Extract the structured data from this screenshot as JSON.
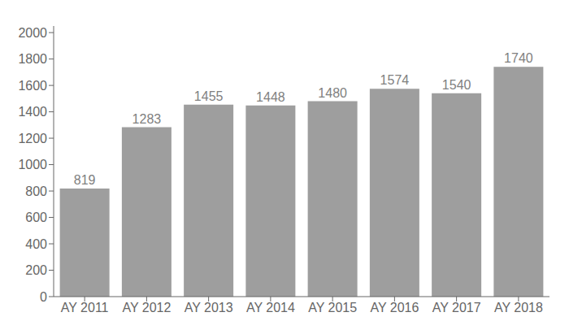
{
  "chart_data": {
    "type": "bar",
    "categories": [
      "AY 2011",
      "AY 2012",
      "AY 2013",
      "AY 2014",
      "AY 2015",
      "AY 2016",
      "AY 2017",
      "AY 2018"
    ],
    "values": [
      819,
      1283,
      1455,
      1448,
      1480,
      1574,
      1540,
      1740
    ],
    "color": "#9e9e9e",
    "ylim": [
      0,
      2050
    ],
    "yticks": [
      0,
      200,
      400,
      600,
      800,
      1000,
      1200,
      1400,
      1600,
      1800,
      2000
    ],
    "grid": false,
    "data_labels": true
  }
}
